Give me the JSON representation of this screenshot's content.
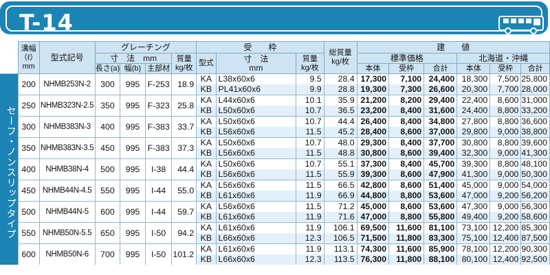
{
  "banner": {
    "title": "T-14",
    "icon": "bus-icon",
    "color": "#1b84b5"
  },
  "side_label": "セーフ・ノンスリップタイプ",
  "headers": {
    "groove_width": "溝幅\n（ℓ）\nmm",
    "model": "型式記号",
    "grating": "グレーチング",
    "grating_dims": "寸　法　mm",
    "grating_weight": "質量\nkg/枚",
    "length": "長さ(a)",
    "width": "幅(b)",
    "material": "主部材",
    "frame": "受　　枠",
    "frame_type": "型式",
    "frame_dims": "寸　法\nmm",
    "frame_weight": "質量\nkg/枚",
    "total_weight": "総質量\nkg/枚",
    "price": "建　　値",
    "standard": "標準価格",
    "hokkaido": "北海道・沖縄",
    "body": "本体",
    "frame_price": "受枠",
    "total": "合計"
  },
  "rows": [
    {
      "groove": "200",
      "model": "NHMB253N-2",
      "length": "300",
      "width": "995",
      "material": "F-253",
      "gweight": "18.9",
      "frames": [
        {
          "type": "KA",
          "dims": "L38x60x6",
          "fweight": "9.5",
          "total": "28.4",
          "s_body": "17,300",
          "s_frame": "7,100",
          "s_total": "24,400",
          "h_body": "18,300",
          "h_frame": "7,500",
          "h_total": "25,800"
        },
        {
          "type": "KB",
          "dims": "PL41x60x6",
          "fweight": "9.9",
          "total": "28.8",
          "s_body": "19,300",
          "s_frame": "7,300",
          "s_total": "26,600",
          "h_body": "20,300",
          "h_frame": "7,700",
          "h_total": "28,000"
        }
      ]
    },
    {
      "groove": "250",
      "model": "NHMB323N-2.5",
      "length": "350",
      "width": "995",
      "material": "F-323",
      "gweight": "25.8",
      "frames": [
        {
          "type": "KA",
          "dims": "L44x60x6",
          "fweight": "10.1",
          "total": "35.9",
          "s_body": "21,200",
          "s_frame": "8,200",
          "s_total": "29,400",
          "h_body": "22,400",
          "h_frame": "8,600",
          "h_total": "31,000"
        },
        {
          "type": "KB",
          "dims": "L50x60x6",
          "fweight": "10.7",
          "total": "36.5",
          "s_body": "23,200",
          "s_frame": "8,400",
          "s_total": "31,600",
          "h_body": "24,400",
          "h_frame": "8,800",
          "h_total": "33,200"
        }
      ]
    },
    {
      "groove": "300",
      "model": "NHMB383N-3",
      "length": "400",
      "width": "995",
      "material": "F-383",
      "gweight": "33.7",
      "frames": [
        {
          "type": "KA",
          "dims": "L50x60x6",
          "fweight": "10.7",
          "total": "44.4",
          "s_body": "26,400",
          "s_frame": "8,400",
          "s_total": "34,800",
          "h_body": "27,800",
          "h_frame": "8,800",
          "h_total": "36,600"
        },
        {
          "type": "KB",
          "dims": "L56x60x6",
          "fweight": "11.5",
          "total": "45.2",
          "s_body": "28,400",
          "s_frame": "8,600",
          "s_total": "37,000",
          "h_body": "29,800",
          "h_frame": "9,000",
          "h_total": "38,800"
        }
      ]
    },
    {
      "groove": "350",
      "model": "NHMB383N-3.5",
      "length": "450",
      "width": "995",
      "material": "F-383",
      "gweight": "37.3",
      "frames": [
        {
          "type": "KA",
          "dims": "L50x60x6",
          "fweight": "10.7",
          "total": "48.0",
          "s_body": "29,300",
          "s_frame": "8,400",
          "s_total": "37,700",
          "h_body": "30,800",
          "h_frame": "8,800",
          "h_total": "39,600"
        },
        {
          "type": "KB",
          "dims": "L56x60x6",
          "fweight": "11.5",
          "total": "48.8",
          "s_body": "30,800",
          "s_frame": "8,600",
          "s_total": "39,400",
          "h_body": "32,300",
          "h_frame": "9,000",
          "h_total": "41,300"
        }
      ]
    },
    {
      "groove": "400",
      "model": "NHMB38N-4",
      "length": "500",
      "width": "995",
      "material": "I-38",
      "gweight": "44.4",
      "frames": [
        {
          "type": "KA",
          "dims": "L50x60x6",
          "fweight": "10.7",
          "total": "55.1",
          "s_body": "37,300",
          "s_frame": "8,400",
          "s_total": "45,700",
          "h_body": "39,300",
          "h_frame": "8,800",
          "h_total": "48,100"
        },
        {
          "type": "KB",
          "dims": "L56x60x6",
          "fweight": "11.5",
          "total": "55.9",
          "s_body": "39,300",
          "s_frame": "8,600",
          "s_total": "47,900",
          "h_body": "41,300",
          "h_frame": "9,000",
          "h_total": "50,300"
        }
      ]
    },
    {
      "groove": "450",
      "model": "NHMB44N-4.5",
      "length": "550",
      "width": "995",
      "material": "I-44",
      "gweight": "55.0",
      "frames": [
        {
          "type": "KA",
          "dims": "L56x60x6",
          "fweight": "11.5",
          "total": "66.5",
          "s_body": "42,800",
          "s_frame": "8,600",
          "s_total": "51,400",
          "h_body": "45,000",
          "h_frame": "9,000",
          "h_total": "54,000"
        },
        {
          "type": "KB",
          "dims": "L61x60x6",
          "fweight": "11.9",
          "total": "66.9",
          "s_body": "44,800",
          "s_frame": "8,800",
          "s_total": "53,600",
          "h_body": "47,000",
          "h_frame": "9,200",
          "h_total": "56,200"
        }
      ]
    },
    {
      "groove": "500",
      "model": "NHMB44N-5",
      "length": "600",
      "width": "995",
      "material": "I-44",
      "gweight": "59.7",
      "frames": [
        {
          "type": "KA",
          "dims": "L56x60x6",
          "fweight": "11.5",
          "total": "71.2",
          "s_body": "45,000",
          "s_frame": "8,600",
          "s_total": "53,600",
          "h_body": "47,300",
          "h_frame": "9,000",
          "h_total": "56,300"
        },
        {
          "type": "KB",
          "dims": "L61x60x6",
          "fweight": "11.9",
          "total": "71.6",
          "s_body": "47,000",
          "s_frame": "8,800",
          "s_total": "55,800",
          "h_body": "49,400",
          "h_frame": "9,200",
          "h_total": "58,600"
        }
      ]
    },
    {
      "groove": "550",
      "model": "NHMB50N-5.5",
      "length": "650",
      "width": "995",
      "material": "I-50",
      "gweight": "94.2",
      "frames": [
        {
          "type": "KA",
          "dims": "L61x60x6",
          "fweight": "11.9",
          "total": "106.1",
          "s_body": "69,500",
          "s_frame": "11,600",
          "s_total": "81,100",
          "h_body": "73,100",
          "h_frame": "12,200",
          "h_total": "85,300"
        },
        {
          "type": "KB",
          "dims": "L66x60x6",
          "fweight": "12.3",
          "total": "106.5",
          "s_body": "71,500",
          "s_frame": "11,800",
          "s_total": "83,300",
          "h_body": "75,100",
          "h_frame": "12,400",
          "h_total": "87,500"
        }
      ]
    },
    {
      "groove": "600",
      "model": "NHMB50N-6",
      "length": "700",
      "width": "995",
      "material": "I-50",
      "gweight": "101.2",
      "frames": [
        {
          "type": "KA",
          "dims": "L61x60x6",
          "fweight": "11.9",
          "total": "113.1",
          "s_body": "74,300",
          "s_frame": "11,600",
          "s_total": "85,900",
          "h_body": "78,100",
          "h_frame": "12,200",
          "h_total": "90,300"
        },
        {
          "type": "KB",
          "dims": "L66x60x6",
          "fweight": "12.3",
          "total": "113.5",
          "s_body": "76,300",
          "s_frame": "11,800",
          "s_total": "88,100",
          "h_body": "80,100",
          "h_frame": "12,400",
          "h_total": "92,500"
        }
      ]
    }
  ]
}
